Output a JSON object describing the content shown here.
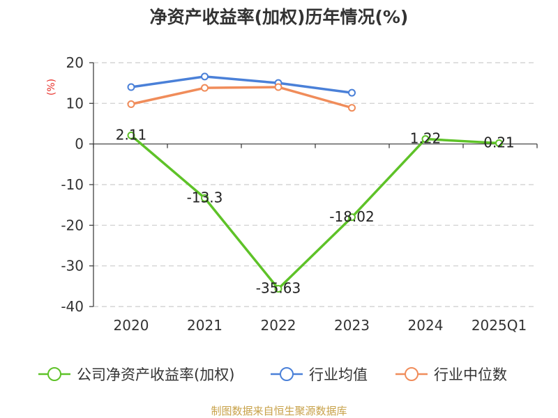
{
  "chart_data": {
    "type": "line",
    "title": "净资产收益率(加权)历年情况(%)",
    "ylabel": "(%)",
    "categories": [
      "2020",
      "2021",
      "2022",
      "2023",
      "2024",
      "2025Q1"
    ],
    "ylim": [
      -40,
      20
    ],
    "yticks": [
      "20",
      "10",
      "0",
      "-10",
      "-20",
      "-30",
      "-40"
    ],
    "grid": true,
    "legend": "bottom",
    "series": [
      {
        "name": "公司净资产收益率(加权)",
        "color": "#5ec228",
        "values": [
          2.11,
          -13.3,
          -35.63,
          -18.02,
          1.22,
          0.21
        ],
        "labels": [
          "2.11",
          "-13.3",
          "-35.63",
          "-18.02",
          "1.22",
          "0.21"
        ]
      },
      {
        "name": "行业均值",
        "color": "#4a80d8",
        "values": [
          14,
          16.6,
          15,
          12.6,
          null,
          null
        ]
      },
      {
        "name": "行业中位数",
        "color": "#f08c5a",
        "values": [
          9.8,
          13.8,
          14,
          8.9,
          null,
          null
        ]
      }
    ]
  },
  "footer": {
    "source": "制图数据来自恒生聚源数据库"
  }
}
